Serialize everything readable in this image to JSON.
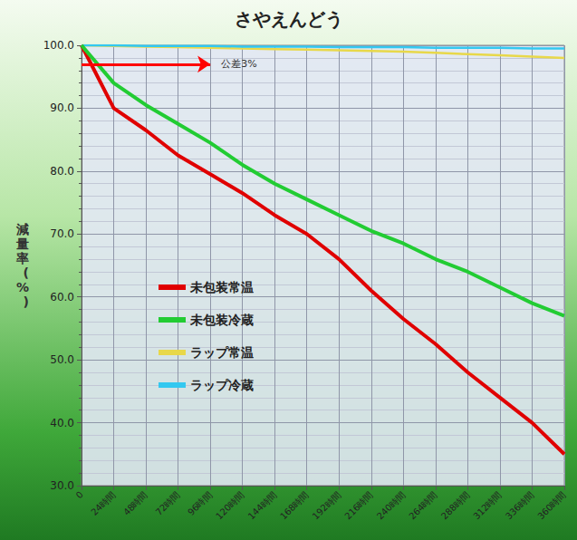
{
  "chart_data": {
    "type": "line",
    "title": "さやえんどう",
    "y_label": "減量率(%)",
    "categories": [
      "0",
      "24時間",
      "48時間",
      "72時間",
      "96時間",
      "120時間",
      "144時間",
      "168時間",
      "192時間",
      "216時間",
      "240時間",
      "264時間",
      "288時間",
      "312時間",
      "336時間",
      "360時間"
    ],
    "series": [
      {
        "name": "未包装常温",
        "color": "#e00000",
        "values": [
          100,
          90,
          86.5,
          82.5,
          79.5,
          76.5,
          73,
          70,
          66,
          61,
          56.5,
          52.5,
          48,
          44,
          40,
          35
        ]
      },
      {
        "name": "未包装冷蔵",
        "color": "#22cc33",
        "values": [
          100,
          94,
          90.5,
          87.5,
          84.5,
          81,
          78,
          75.5,
          73,
          70.5,
          68.5,
          66,
          64,
          61.5,
          59,
          57
        ]
      },
      {
        "name": "ラップ常温",
        "color": "#e8d84a",
        "values": [
          100,
          99.9,
          99.8,
          99.7,
          99.6,
          99.5,
          99.4,
          99.3,
          99.2,
          99.1,
          99,
          98.8,
          98.6,
          98.4,
          98.2,
          98
        ]
      },
      {
        "name": "ラップ冷蔵",
        "color": "#33c8f0",
        "values": [
          100,
          100,
          99.9,
          99.9,
          99.9,
          99.8,
          99.8,
          99.8,
          99.7,
          99.7,
          99.7,
          99.6,
          99.6,
          99.6,
          99.5,
          99.5
        ]
      }
    ],
    "ylim": [
      30,
      100
    ],
    "yticks": [
      {
        "value": 30,
        "label": "30.0"
      },
      {
        "value": 40,
        "label": "40.0"
      },
      {
        "value": 50,
        "label": "50.0"
      },
      {
        "value": 60,
        "label": "60.0"
      },
      {
        "value": 70,
        "label": "70.0"
      },
      {
        "value": 80,
        "label": "80.0"
      },
      {
        "value": 90,
        "label": "90.0"
      },
      {
        "value": 100,
        "label": "100.0"
      }
    ],
    "grid": true,
    "legend": "left",
    "annotations": [
      {
        "text": "公差3%",
        "y": 97,
        "color": "#ff0000"
      }
    ]
  }
}
